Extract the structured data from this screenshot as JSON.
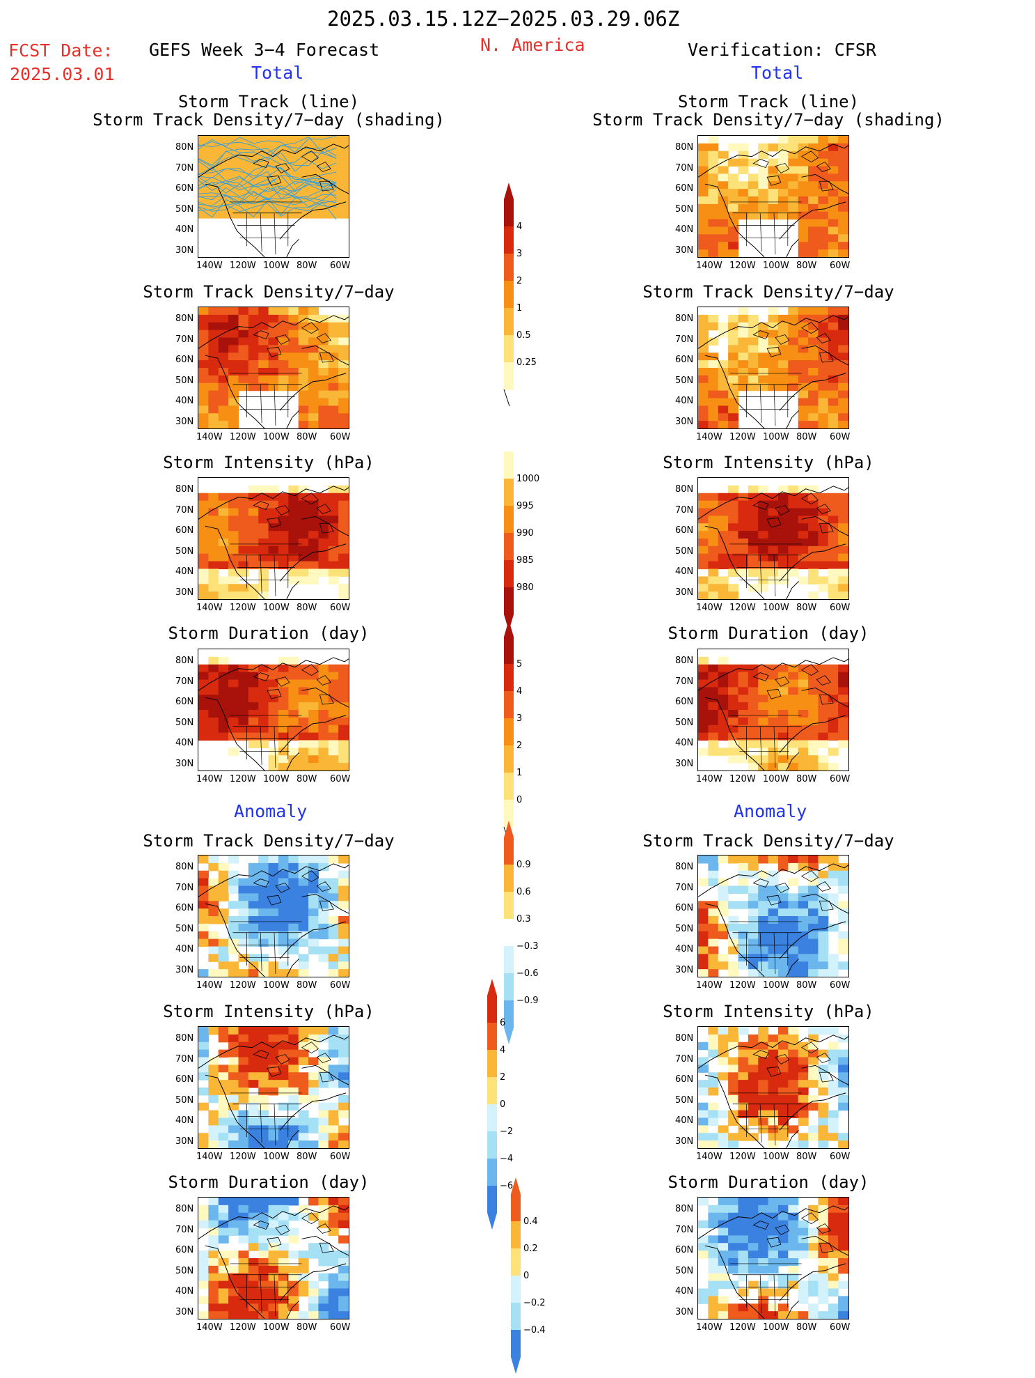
{
  "header": {
    "date_range": "2025.03.15.12Z−2025.03.29.06Z",
    "fcst_label": "FCST Date:",
    "fcst_date": "2025.03.01",
    "forecast_title": "GEFS Week 3−4 Forecast",
    "region": "N. America",
    "verification": "Verification: CFSR"
  },
  "sections": {
    "total": "Total",
    "anomaly": "Anomaly"
  },
  "panel_titles": {
    "track_line": "Storm Track (line)",
    "track_shading": "Storm Track Density/7−day (shading)",
    "density": "Storm Track Density/7−day",
    "intensity": "Storm Intensity (hPa)",
    "duration": "Storm Duration (day)"
  },
  "axes": {
    "lat_labels": [
      "80N",
      "70N",
      "60N",
      "50N",
      "40N",
      "30N"
    ],
    "lon_labels": [
      "140W",
      "120W",
      "100W",
      "80W",
      "60W"
    ]
  },
  "colorbars": {
    "density_total": [
      "4",
      "3",
      "2",
      "1",
      "0.5",
      "0.25"
    ],
    "intensity_total": [
      "1000",
      "995",
      "990",
      "985",
      "980"
    ],
    "duration_total": [
      "5",
      "4",
      "3",
      "2",
      "1",
      "0"
    ],
    "density_anom": [
      "0.9",
      "0.6",
      "0.3",
      "−0.3",
      "−0.6",
      "−0.9"
    ],
    "intensity_anom": [
      "6",
      "4",
      "2",
      "0",
      "−2",
      "−4",
      "−6"
    ],
    "duration_anom": [
      "0.4",
      "0.2",
      "0",
      "−0.2",
      "−0.4"
    ]
  },
  "colors": {
    "warm": [
      "#fff9c0",
      "#fde27a",
      "#f9b637",
      "#f68f14",
      "#ee5b1d",
      "#d72a0f",
      "#a8120a"
    ],
    "cool": [
      "#d3f2fb",
      "#a6e0f5",
      "#6cb6ee",
      "#3b82e0",
      "#1f5fd2"
    ],
    "track_line": "#2fa0e0"
  }
}
